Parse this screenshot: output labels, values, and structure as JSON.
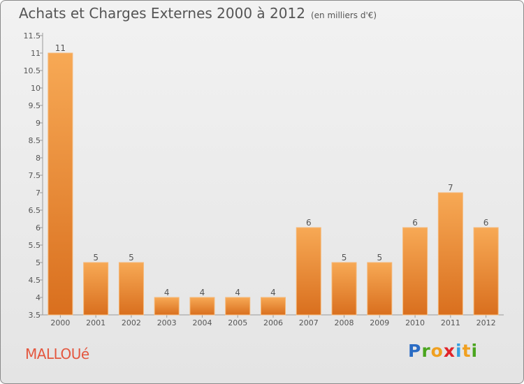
{
  "header": {
    "title": "Achats et Charges Externes 2000 à 2012",
    "unit": "(en milliers d'€)"
  },
  "footer": {
    "commune": "MALLOUé",
    "logo": "Proxiti"
  },
  "colors": {
    "bar_top": "#f7a955",
    "bar_bottom": "#d96f1e",
    "commune_text": "#e4573f",
    "text": "#555555"
  },
  "chart_data": {
    "type": "bar",
    "title": "Achats et Charges Externes 2000 à 2012",
    "subtitle": "(en milliers d'€)",
    "categories": [
      "2000",
      "2001",
      "2002",
      "2003",
      "2004",
      "2005",
      "2006",
      "2007",
      "2008",
      "2009",
      "2010",
      "2011",
      "2012"
    ],
    "values": [
      11,
      5,
      5,
      4,
      4,
      4,
      4,
      6,
      5,
      5,
      6,
      7,
      6
    ],
    "data_labels": [
      "11",
      "5",
      "5",
      "4",
      "4",
      "4",
      "4",
      "6",
      "5",
      "5",
      "6",
      "7",
      "6"
    ],
    "ylim": [
      3.5,
      11.5
    ],
    "yticks": [
      "3.5",
      "4",
      "4.5",
      "5",
      "5.5",
      "6",
      "6.5",
      "7",
      "7.5",
      "8",
      "8.5",
      "9",
      "9.5",
      "10",
      "10.5",
      "11",
      "11.5"
    ],
    "grid": false,
    "legend": "none"
  }
}
